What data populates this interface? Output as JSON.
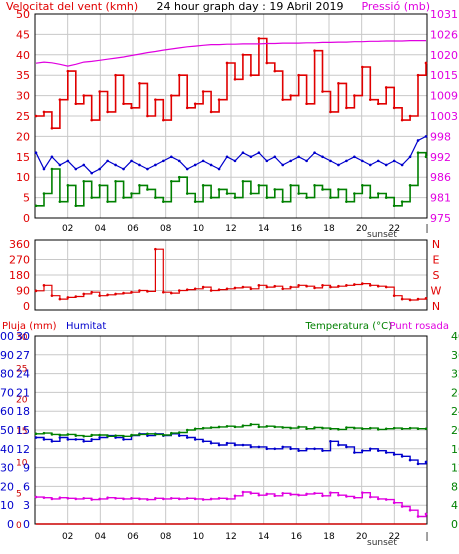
{
  "header": {
    "left": "Velocitat del vent (kmh)",
    "center": "24 hour graph day : 19 Abril 2019",
    "right": "Pressió (mb)"
  },
  "colors": {
    "wind_gust": "#e00000",
    "wind_avg": "#0000cc",
    "wind_min": "#008000",
    "pressure": "#e000e0",
    "direction": "#e00000",
    "humidity": "#0000cc",
    "temperature": "#008000",
    "dewpoint": "#e000e0",
    "rain": "#cc0000",
    "grid": "#c8c8c8",
    "axis": "#000000"
  },
  "chart_data": [
    {
      "id": "wind-pressure",
      "type": "line",
      "x_tick_labels": [
        "02",
        "04",
        "06",
        "08",
        "10",
        "12",
        "14",
        "16",
        "18",
        "20",
        "22",
        "|"
      ],
      "sunset_label": "sunset",
      "left_axis": {
        "label": "Velocitat del vent (kmh)",
        "ticks": [
          0,
          5,
          10,
          15,
          20,
          25,
          30,
          35,
          40,
          45,
          50
        ],
        "ylim": [
          0,
          50
        ]
      },
      "right_axis": {
        "label": "Pressió (mb)",
        "ticks": [
          975,
          981,
          986,
          992,
          998,
          1003,
          1009,
          1015,
          1020,
          1026,
          1031
        ],
        "ylim": [
          975,
          1031
        ]
      },
      "series": [
        {
          "role": "gust",
          "values": [
            25,
            26,
            22,
            29,
            36,
            28,
            30,
            24,
            31,
            26,
            35,
            28,
            27,
            33,
            25,
            29,
            24,
            30,
            35,
            27,
            28,
            31,
            26,
            29,
            38,
            34,
            40,
            35,
            44,
            38,
            36,
            29,
            30,
            35,
            28,
            41,
            31,
            26,
            33,
            27,
            30,
            37,
            29,
            28,
            32,
            27,
            24,
            25,
            35,
            38
          ]
        },
        {
          "role": "average",
          "values": [
            16,
            12,
            15,
            13,
            14,
            12,
            13,
            11,
            12,
            14,
            13,
            12,
            14,
            13,
            12,
            13,
            14,
            15,
            14,
            12,
            13,
            14,
            13,
            12,
            15,
            14,
            16,
            15,
            16,
            14,
            15,
            13,
            14,
            15,
            14,
            16,
            15,
            14,
            13,
            14,
            15,
            14,
            13,
            14,
            13,
            14,
            13,
            15,
            19,
            20
          ]
        },
        {
          "role": "minimum",
          "values": [
            3,
            6,
            12,
            4,
            8,
            3,
            9,
            5,
            8,
            4,
            9,
            5,
            6,
            8,
            7,
            5,
            4,
            9,
            10,
            6,
            4,
            8,
            5,
            7,
            6,
            5,
            9,
            6,
            8,
            5,
            7,
            4,
            8,
            6,
            5,
            8,
            7,
            5,
            7,
            4,
            6,
            8,
            5,
            6,
            5,
            3,
            4,
            8,
            16,
            15
          ]
        },
        {
          "role": "pressure",
          "axis": "right",
          "values": [
            1017.5,
            1017.8,
            1017.6,
            1017.2,
            1016.7,
            1017.2,
            1017.8,
            1018.0,
            1018.3,
            1018.6,
            1018.9,
            1019.2,
            1019.6,
            1020.0,
            1020.4,
            1020.7,
            1021.1,
            1021.4,
            1021.7,
            1022.0,
            1022.2,
            1022.4,
            1022.6,
            1022.6,
            1022.7,
            1022.7,
            1022.8,
            1022.8,
            1022.8,
            1022.9,
            1022.9,
            1023.0,
            1023.0,
            1023.0,
            1023.1,
            1023.1,
            1023.2,
            1023.2,
            1023.3,
            1023.3,
            1023.4,
            1023.4,
            1023.5,
            1023.5,
            1023.6,
            1023.6,
            1023.6,
            1023.7,
            1023.7,
            1023.7
          ]
        }
      ]
    },
    {
      "id": "wind-direction",
      "type": "scatter",
      "left_axis": {
        "ticks": [
          0,
          90,
          180,
          270,
          360
        ],
        "ylim": [
          0,
          360
        ]
      },
      "right_labels": [
        "N",
        "W",
        "S",
        "E",
        "N"
      ],
      "series": [
        {
          "role": "direction",
          "values": [
            88,
            120,
            60,
            40,
            50,
            55,
            70,
            80,
            60,
            65,
            70,
            75,
            80,
            90,
            85,
            330,
            80,
            75,
            90,
            95,
            100,
            110,
            90,
            95,
            100,
            105,
            110,
            100,
            120,
            110,
            115,
            100,
            110,
            120,
            115,
            105,
            120,
            110,
            115,
            120,
            125,
            130,
            120,
            115,
            110,
            60,
            40,
            35,
            40,
            45
          ]
        }
      ]
    },
    {
      "id": "humidity-temperature",
      "type": "line",
      "x_tick_labels": [
        "02",
        "04",
        "06",
        "08",
        "10",
        "12",
        "14",
        "16",
        "18",
        "20",
        "22",
        "|"
      ],
      "sunset_label": "sunset",
      "left_header": "Pluja (mm)",
      "humidity_header": "Humitat",
      "right_header": "Temperatura (°C)",
      "dewpoint_header": "Punt rosada",
      "rain_axis": {
        "ticks": [
          0,
          5,
          10,
          15,
          20,
          25,
          30
        ],
        "ylim": [
          0,
          30
        ]
      },
      "humidity_axis": {
        "ticks": [
          0,
          10,
          20,
          30,
          40,
          50,
          60,
          70,
          80,
          90,
          100
        ],
        "ylim": [
          0,
          100
        ]
      },
      "temp_axis_left": {
        "ticks": [
          0,
          3,
          6,
          9,
          12,
          15,
          18,
          21,
          24,
          27,
          30
        ],
        "ylim": [
          0,
          30
        ]
      },
      "temp_axis_right": {
        "ticks": [
          0,
          4,
          8,
          12,
          16,
          20,
          24,
          28,
          32,
          36,
          40
        ],
        "ylim": [
          0,
          40
        ]
      },
      "series": [
        {
          "role": "rain",
          "values": [
            0,
            0,
            0,
            0,
            0,
            0,
            0,
            0,
            0,
            0,
            0,
            0,
            0,
            0,
            0,
            0,
            0,
            0,
            0,
            0,
            0,
            0,
            0,
            0,
            0,
            0,
            0,
            0,
            0,
            0,
            0,
            0,
            0,
            0,
            0,
            0,
            0,
            0,
            0,
            0,
            0,
            0,
            0,
            0,
            0,
            0,
            0,
            0,
            0,
            0
          ]
        },
        {
          "role": "humidity",
          "values": [
            46,
            45,
            44,
            46,
            45,
            45,
            44,
            45,
            46,
            47,
            46,
            45,
            47,
            48,
            47,
            48,
            47,
            48,
            47,
            46,
            45,
            44,
            43,
            42,
            43,
            42,
            42,
            41,
            41,
            40,
            40,
            41,
            40,
            39,
            40,
            40,
            39,
            44,
            42,
            41,
            38,
            39,
            40,
            39,
            38,
            37,
            36,
            34,
            32,
            33
          ]
        },
        {
          "role": "temperature",
          "values": [
            14.4,
            14.5,
            14.3,
            14.2,
            14.3,
            14.1,
            14.0,
            14.2,
            14.2,
            14.0,
            14.1,
            14.0,
            14.2,
            14.3,
            14.4,
            14.3,
            14.2,
            14.5,
            14.6,
            15.0,
            15.2,
            15.3,
            15.4,
            15.5,
            15.6,
            15.5,
            15.7,
            15.9,
            15.5,
            15.6,
            15.5,
            15.4,
            15.3,
            15.5,
            15.2,
            15.4,
            15.3,
            15.2,
            15.1,
            15.4,
            15.3,
            15.2,
            15.3,
            15.1,
            15.2,
            15.3,
            15.2,
            15.3,
            15.2,
            15.2
          ]
        },
        {
          "role": "dewpoint",
          "values": [
            4.3,
            4.2,
            4.0,
            4.2,
            4.1,
            4.0,
            4.1,
            3.9,
            4.0,
            4.2,
            4.1,
            4.0,
            4.1,
            4.0,
            3.9,
            4.1,
            4.0,
            4.1,
            4.0,
            4.1,
            4.0,
            3.9,
            4.0,
            4.1,
            4.0,
            4.5,
            5.1,
            4.9,
            4.6,
            4.8,
            4.5,
            4.9,
            4.7,
            4.6,
            4.8,
            4.9,
            4.5,
            5.0,
            4.6,
            4.4,
            4.2,
            5.0,
            4.3,
            4.0,
            3.9,
            3.4,
            2.8,
            2.2,
            1.2,
            1.6
          ]
        }
      ]
    }
  ]
}
